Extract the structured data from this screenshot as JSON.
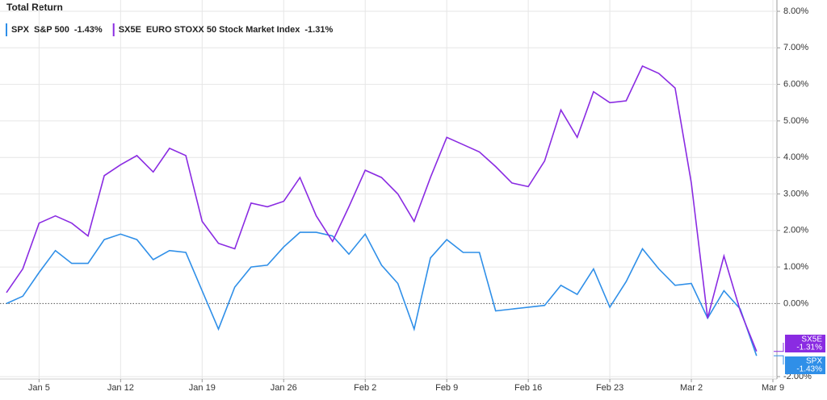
{
  "chart_data": {
    "type": "line",
    "title": "Total Return",
    "xlim": [
      "Jan 1",
      "Mar 9"
    ],
    "xticks": [
      "Jan 5",
      "Jan 12",
      "Jan 19",
      "Jan 26",
      "Feb 2",
      "Feb 9",
      "Feb 16",
      "Feb 23",
      "Mar 2",
      "Mar 9"
    ],
    "ylim": [
      -2,
      8
    ],
    "yticks": [
      {
        "value": -2,
        "label": "-2.00%"
      },
      {
        "value": 0,
        "label": "0.00%"
      },
      {
        "value": 1,
        "label": "1.00%"
      },
      {
        "value": 2,
        "label": "2.00%"
      },
      {
        "value": 3,
        "label": "3.00%"
      },
      {
        "value": 4,
        "label": "4.00%"
      },
      {
        "value": 5,
        "label": "5.00%"
      },
      {
        "value": 6,
        "label": "6.00%"
      },
      {
        "value": 7,
        "label": "7.00%"
      },
      {
        "value": 8,
        "label": "8.00%"
      }
    ],
    "grid": true,
    "series": [
      {
        "name": "SPX",
        "description": "S&P 500",
        "legend_label": "-1.43%",
        "color": "#2f8fe8",
        "x": [
          "Jan 1",
          "Jan 2",
          "Jan 5",
          "Jan 6",
          "Jan 7",
          "Jan 8",
          "Jan 9",
          "Jan 12",
          "Jan 13",
          "Jan 14",
          "Jan 15",
          "Jan 16",
          "Jan 20",
          "Jan 21",
          "Jan 22",
          "Jan 23",
          "Jan 26",
          "Jan 27",
          "Jan 28",
          "Jan 29",
          "Jan 30",
          "Feb 2",
          "Feb 3",
          "Feb 4",
          "Feb 5",
          "Feb 6",
          "Feb 9",
          "Feb 10",
          "Feb 11",
          "Feb 12",
          "Feb 17",
          "Feb 18",
          "Feb 19",
          "Feb 20",
          "Feb 23",
          "Feb 24",
          "Feb 25",
          "Feb 26",
          "Feb 27",
          "Mar 2",
          "Mar 3",
          "Mar 4",
          "Mar 5",
          "Mar 6"
        ],
        "values": [
          0.0,
          0.2,
          0.85,
          1.45,
          1.1,
          1.1,
          1.75,
          1.9,
          1.75,
          1.2,
          1.45,
          1.4,
          -0.7,
          0.45,
          1.0,
          1.05,
          1.55,
          1.95,
          1.95,
          1.85,
          1.35,
          1.9,
          1.05,
          0.55,
          -0.7,
          1.25,
          1.75,
          1.4,
          1.4,
          -0.2,
          -0.05,
          0.5,
          0.25,
          0.95,
          -0.1,
          0.6,
          1.5,
          0.95,
          0.5,
          0.55,
          -0.4,
          0.35,
          -0.15,
          -1.43
        ]
      },
      {
        "name": "SX5E",
        "description": "EURO STOXX 50 Stock Market Index",
        "legend_label": "-1.31%",
        "color": "#8a2be2",
        "x": [
          "Jan 1",
          "Jan 2",
          "Jan 5",
          "Jan 6",
          "Jan 7",
          "Jan 8",
          "Jan 9",
          "Jan 12",
          "Jan 13",
          "Jan 14",
          "Jan 15",
          "Jan 16",
          "Jan 19",
          "Jan 20",
          "Jan 21",
          "Jan 22",
          "Jan 23",
          "Jan 26",
          "Jan 27",
          "Jan 28",
          "Jan 29",
          "Jan 30",
          "Feb 2",
          "Feb 3",
          "Feb 4",
          "Feb 5",
          "Feb 6",
          "Feb 9",
          "Feb 10",
          "Feb 11",
          "Feb 12",
          "Feb 13",
          "Feb 16",
          "Feb 17",
          "Feb 18",
          "Feb 19",
          "Feb 20",
          "Feb 23",
          "Feb 24",
          "Feb 25",
          "Feb 26",
          "Feb 27",
          "Mar 2",
          "Mar 3",
          "Mar 4",
          "Mar 5",
          "Mar 6"
        ],
        "values": [
          0.3,
          0.95,
          2.2,
          2.4,
          2.2,
          1.85,
          3.5,
          3.8,
          4.05,
          3.6,
          4.25,
          4.05,
          2.25,
          1.65,
          1.5,
          2.75,
          2.65,
          2.8,
          3.45,
          2.4,
          1.7,
          2.65,
          3.65,
          3.45,
          3.0,
          2.25,
          3.45,
          4.55,
          4.35,
          4.15,
          3.75,
          3.3,
          3.2,
          3.9,
          5.3,
          4.55,
          5.8,
          5.5,
          5.55,
          6.5,
          6.3,
          5.9,
          3.3,
          -0.4,
          1.3,
          -0.2,
          -1.31
        ]
      }
    ]
  }
}
